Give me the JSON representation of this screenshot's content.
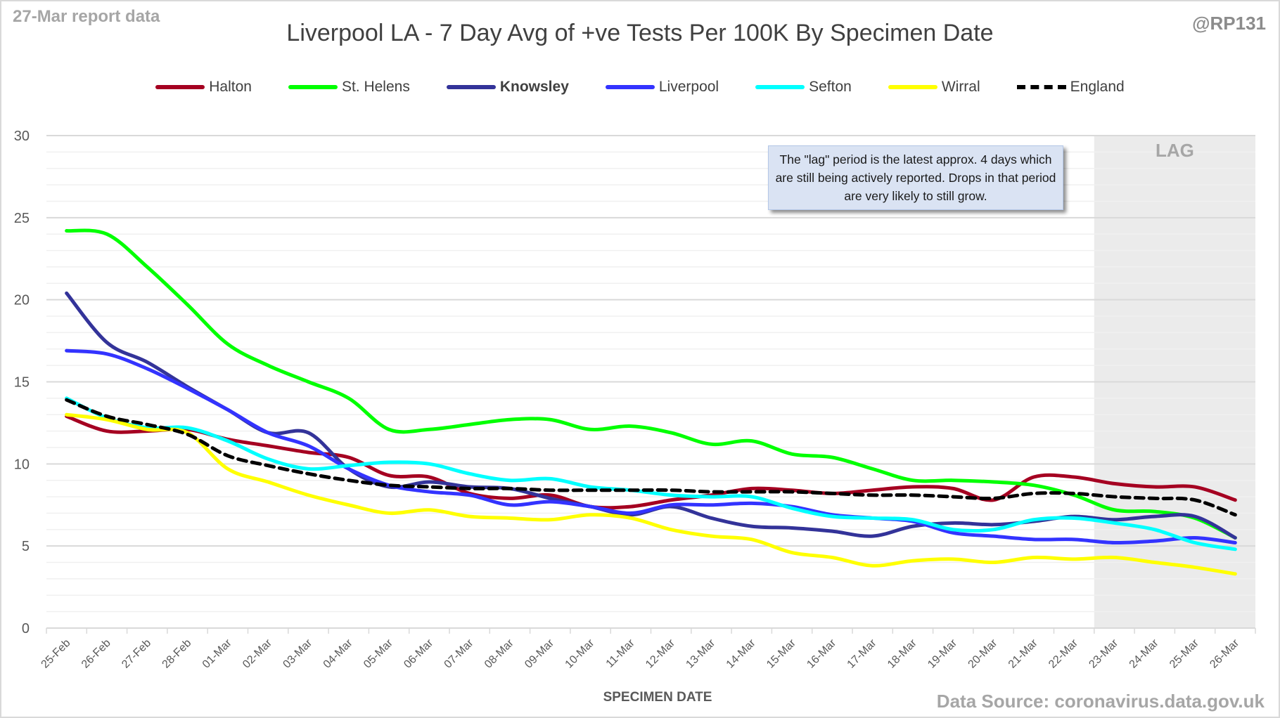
{
  "header": {
    "report_label": "27-Mar report data",
    "handle": "@RP131",
    "source": "Data Source: coronavirus.data.gov.uk"
  },
  "note": "The \"lag\" period is the latest approx. 4 days which are still being actively reported. Drops in that period are very likely to still grow.",
  "chart_data": {
    "type": "line",
    "title": "Liverpool LA - 7 Day Avg of +ve Tests Per 100K By Specimen Date",
    "xlabel": "SPECIMEN DATE",
    "ylabel": "",
    "ylim": [
      0,
      30
    ],
    "yticks": [
      0,
      5,
      10,
      15,
      20,
      25,
      30
    ],
    "minor_grid_step": 1,
    "grid": true,
    "legend_position": "top",
    "lag_label": "LAG",
    "lag_start_category": "23-Mar",
    "categories": [
      "25-Feb",
      "26-Feb",
      "27-Feb",
      "28-Feb",
      "01-Mar",
      "02-Mar",
      "03-Mar",
      "04-Mar",
      "05-Mar",
      "06-Mar",
      "07-Mar",
      "08-Mar",
      "09-Mar",
      "10-Mar",
      "11-Mar",
      "12-Mar",
      "13-Mar",
      "14-Mar",
      "15-Mar",
      "16-Mar",
      "17-Mar",
      "18-Mar",
      "19-Mar",
      "20-Mar",
      "21-Mar",
      "22-Mar",
      "23-Mar",
      "24-Mar",
      "25-Mar",
      "26-Mar"
    ],
    "series": [
      {
        "name": "Halton",
        "color": "#a50021",
        "bold": false,
        "dashed": false,
        "values": [
          12.9,
          12.0,
          12.0,
          12.1,
          11.5,
          11.1,
          10.7,
          10.4,
          9.3,
          9.2,
          8.2,
          7.9,
          8.1,
          7.4,
          7.4,
          7.8,
          8.1,
          8.5,
          8.4,
          8.2,
          8.4,
          8.6,
          8.5,
          7.8,
          9.2,
          9.2,
          8.8,
          8.6,
          8.6,
          7.8
        ]
      },
      {
        "name": "St. Helens",
        "color": "#00ff00",
        "bold": false,
        "dashed": false,
        "values": [
          24.2,
          24.0,
          22.0,
          19.7,
          17.3,
          16.0,
          15.0,
          14.0,
          12.1,
          12.1,
          12.4,
          12.7,
          12.7,
          12.1,
          12.3,
          11.9,
          11.2,
          11.4,
          10.6,
          10.4,
          9.7,
          9.0,
          9.0,
          8.9,
          8.7,
          8.1,
          7.2,
          7.1,
          6.7,
          5.5
        ]
      },
      {
        "name": "Knowsley",
        "color": "#333399",
        "bold": true,
        "dashed": false,
        "values": [
          20.4,
          17.4,
          16.2,
          14.7,
          13.3,
          11.9,
          11.9,
          9.7,
          8.6,
          8.9,
          8.6,
          8.5,
          7.9,
          7.4,
          6.9,
          7.4,
          6.7,
          6.2,
          6.1,
          5.9,
          5.6,
          6.2,
          6.4,
          6.3,
          6.5,
          6.8,
          6.6,
          6.8,
          6.8,
          5.5
        ]
      },
      {
        "name": "Liverpool",
        "color": "#3333ff",
        "bold": false,
        "dashed": false,
        "values": [
          16.9,
          16.7,
          15.8,
          14.6,
          13.3,
          11.9,
          11.1,
          9.7,
          8.7,
          8.3,
          8.1,
          7.5,
          7.7,
          7.4,
          7.0,
          7.5,
          7.5,
          7.6,
          7.4,
          6.9,
          6.7,
          6.5,
          5.8,
          5.6,
          5.4,
          5.4,
          5.2,
          5.3,
          5.5,
          5.2
        ]
      },
      {
        "name": "Sefton",
        "color": "#00ffff",
        "bold": false,
        "dashed": false,
        "values": [
          14.0,
          12.8,
          12.2,
          12.2,
          11.4,
          10.3,
          9.7,
          9.9,
          10.1,
          10.0,
          9.4,
          9.0,
          9.1,
          8.6,
          8.4,
          8.1,
          8.0,
          8.0,
          7.3,
          6.8,
          6.7,
          6.6,
          6.0,
          6.0,
          6.6,
          6.7,
          6.4,
          6.0,
          5.2,
          4.8
        ]
      },
      {
        "name": "Wirral",
        "color": "#ffff00",
        "bold": false,
        "dashed": false,
        "values": [
          13.0,
          12.7,
          12.1,
          11.9,
          9.7,
          8.9,
          8.1,
          7.5,
          7.0,
          7.2,
          6.8,
          6.7,
          6.6,
          6.9,
          6.7,
          6.0,
          5.6,
          5.4,
          4.6,
          4.3,
          3.8,
          4.1,
          4.2,
          4.0,
          4.3,
          4.2,
          4.3,
          4.0,
          3.7,
          3.3
        ]
      },
      {
        "name": "England",
        "color": "#000000",
        "bold": false,
        "dashed": true,
        "values": [
          13.9,
          12.9,
          12.4,
          11.8,
          10.5,
          9.9,
          9.4,
          9.0,
          8.7,
          8.6,
          8.5,
          8.5,
          8.4,
          8.4,
          8.4,
          8.4,
          8.3,
          8.3,
          8.3,
          8.2,
          8.1,
          8.1,
          8.0,
          7.9,
          8.2,
          8.2,
          8.0,
          7.9,
          7.8,
          6.9
        ]
      }
    ]
  }
}
